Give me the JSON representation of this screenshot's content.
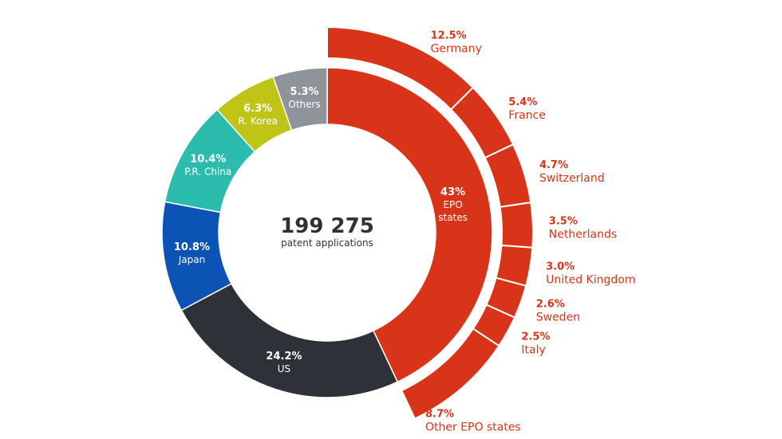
{
  "chart_data": {
    "type": "pie",
    "total": {
      "value": "199 275",
      "label": "patent applications"
    },
    "inner_ring": [
      {
        "name": "EPO states",
        "value": 43,
        "pct_label": "43%",
        "label_lines": [
          "EPO",
          "states"
        ],
        "color": "#d7341a"
      },
      {
        "name": "US",
        "value": 24.2,
        "pct_label": "24.2%",
        "label_lines": [
          "US"
        ],
        "color": "#2e3138"
      },
      {
        "name": "Japan",
        "value": 10.8,
        "pct_label": "10.8%",
        "label_lines": [
          "Japan"
        ],
        "color": "#0b53b4"
      },
      {
        "name": "P.R. China",
        "value": 10.4,
        "pct_label": "10.4%",
        "label_lines": [
          "P.R. China"
        ],
        "color": "#2cbcad"
      },
      {
        "name": "R. Korea",
        "value": 6.3,
        "pct_label": "6.3%",
        "label_lines": [
          "R. Korea"
        ],
        "color": "#bfc417"
      },
      {
        "name": "Others",
        "value": 5.3,
        "pct_label": "5.3%",
        "label_lines": [
          "Others"
        ],
        "color": "#8f939a"
      }
    ],
    "outer_ring": [
      {
        "name": "Germany",
        "value": 12.5,
        "pct_label": "12.5%"
      },
      {
        "name": "France",
        "value": 5.4,
        "pct_label": "5.4%"
      },
      {
        "name": "Switzerland",
        "value": 4.7,
        "pct_label": "4.7%"
      },
      {
        "name": "Netherlands",
        "value": 3.5,
        "pct_label": "3.5%"
      },
      {
        "name": "United Kingdom",
        "value": 3.0,
        "pct_label": "3.0%"
      },
      {
        "name": "Sweden",
        "value": 2.6,
        "pct_label": "2.6%"
      },
      {
        "name": "Italy",
        "value": 2.5,
        "pct_label": "2.5%"
      },
      {
        "name": "Other EPO states",
        "value": 8.7,
        "pct_label": "8.7%"
      }
    ],
    "outer_color": "#d7341a"
  }
}
